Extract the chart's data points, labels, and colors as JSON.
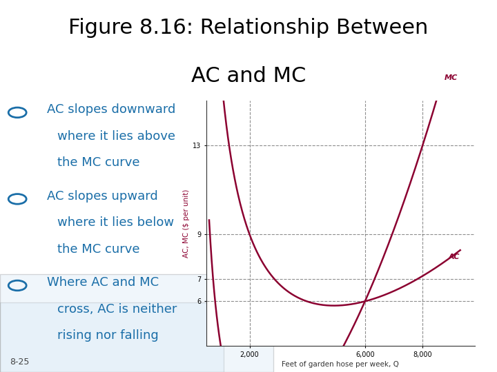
{
  "title_line1": "Figure 8.16: Relationship Between",
  "title_line2": "AC and MC",
  "title_fontsize": 22,
  "title_color": "#000000",
  "white_bg": "#ffffff",
  "blue_bg": "#ccdff0",
  "bullet_color": "#1a6ea8",
  "bullet_items_line1": [
    "AC slopes downward",
    "AC slopes upward",
    "Where AC and MC"
  ],
  "bullet_items_line2": [
    "where it lies above",
    "where it lies below",
    "cross, AC is neither"
  ],
  "bullet_items_line3": [
    "the MC curve",
    "the MC curve",
    "rising nor falling"
  ],
  "footer": "8-25",
  "chart_bg": "#ffffff",
  "curve_color": "#8b0030",
  "xlabel": "Feet of garden hose per week, Q",
  "ylabel": "AC, MC ($ per unit)",
  "xticks": [
    2000,
    6000,
    8000
  ],
  "xtick_labels": [
    "2,000",
    "6,000",
    "8,000"
  ],
  "yticks": [
    6,
    7,
    9,
    13
  ],
  "xmin": 500,
  "xmax": 9800,
  "ymin": 4,
  "ymax": 15,
  "bullet_fontsize": 13,
  "footer_fontsize": 9
}
